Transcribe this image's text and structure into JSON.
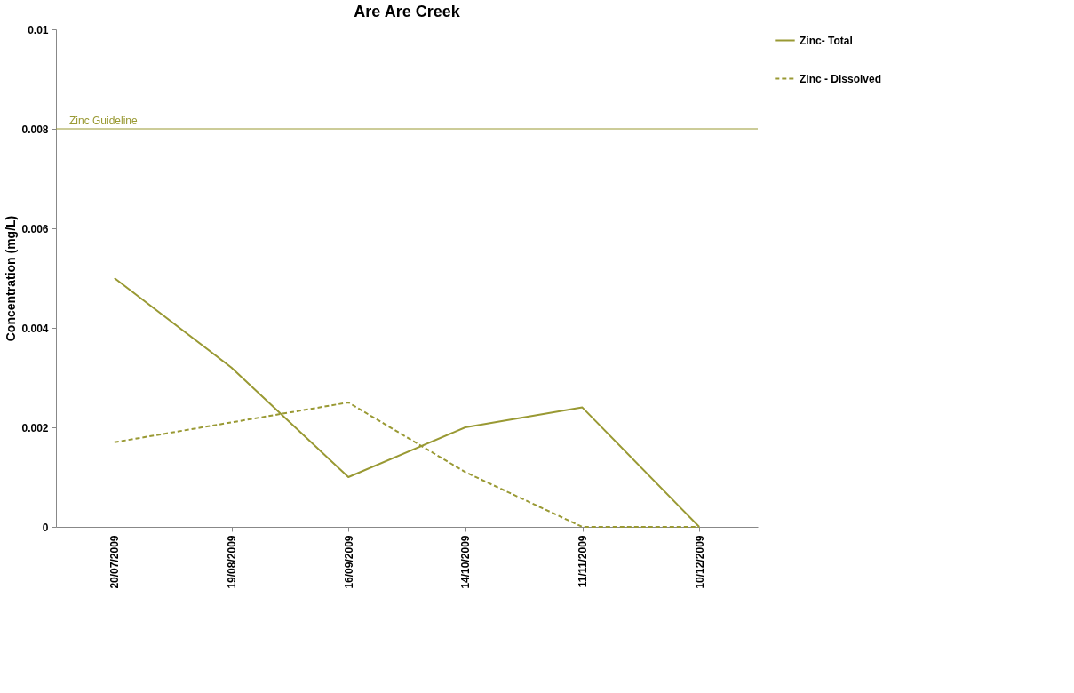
{
  "chart_data": {
    "type": "line",
    "title": "Are Are Creek",
    "ylabel": "Concentration (mg/L)",
    "categories": [
      "20/07/2009",
      "19/08/2009",
      "16/09/2009",
      "14/10/2009",
      "11/11/2009",
      "10/12/2009"
    ],
    "series": [
      {
        "name": "Zinc- Total",
        "color": "#999933",
        "line_style": "solid",
        "values": [
          0.005,
          0.0032,
          0.001,
          0.002,
          0.0024,
          0
        ]
      },
      {
        "name": "Zinc - Dissolved",
        "color": "#999933",
        "line_style": "dashed",
        "values": [
          0.0017,
          0.0021,
          0.0025,
          0.0011,
          0,
          0
        ]
      }
    ],
    "ylim": [
      0,
      0.01
    ],
    "yticks": [
      0,
      0.002,
      0.004,
      0.006,
      0.008,
      0.01
    ],
    "ref_lines": [
      {
        "axis": "y",
        "value": 0.008,
        "label": "Zinc Guideline",
        "color": "#999933"
      }
    ],
    "grid": false,
    "legend": "right",
    "marker": "none"
  }
}
